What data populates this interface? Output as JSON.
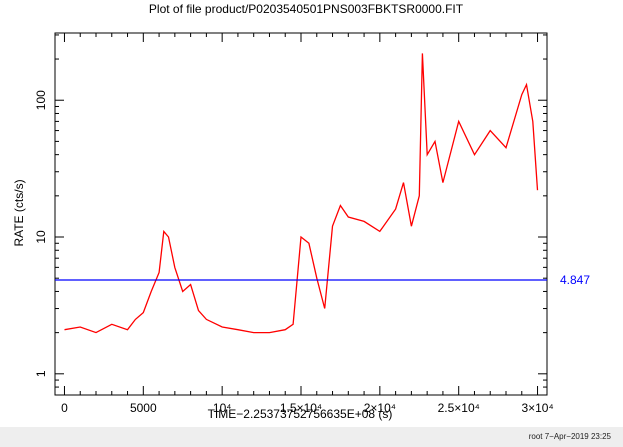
{
  "chart_data": {
    "type": "line",
    "title": "Plot of file product/P0203540501PNS003FBKTSR0000.FIT",
    "xlabel": "TIME−2.25373752756635E+08 (s)",
    "ylabel": "RATE (cts/s)",
    "xlim": [
      -600,
      30600
    ],
    "ylim": [
      0.7,
      310
    ],
    "yscale": "log",
    "x_ticks": [
      {
        "value": 0,
        "label": "0"
      },
      {
        "value": 5000,
        "label": "5000"
      },
      {
        "value": 10000,
        "label": "10⁴"
      },
      {
        "value": 15000,
        "label": "1.5×10⁴"
      },
      {
        "value": 20000,
        "label": "2×10⁴"
      },
      {
        "value": 25000,
        "label": "2.5×10⁴"
      },
      {
        "value": 30000,
        "label": "3×10⁴"
      }
    ],
    "y_ticks": [
      {
        "value": 1,
        "label": "1"
      },
      {
        "value": 10,
        "label": "10"
      },
      {
        "value": 100,
        "label": "100"
      }
    ],
    "series": [
      {
        "color": "#ff0000",
        "x": [
          0,
          1000,
          2000,
          3000,
          4000,
          4500,
          5000,
          5500,
          6000,
          6300,
          6600,
          7000,
          7500,
          8000,
          8500,
          9000,
          10000,
          11000,
          12000,
          13000,
          14000,
          14500,
          15000,
          15500,
          16000,
          16500,
          17000,
          17500,
          18000,
          19000,
          20000,
          21000,
          21500,
          22000,
          22500,
          22700,
          23000,
          23500,
          24000,
          25000,
          26000,
          27000,
          28000,
          29000,
          29300,
          29700,
          30000
        ],
        "y": [
          2.1,
          2.2,
          2.0,
          2.3,
          2.1,
          2.5,
          2.8,
          4.0,
          5.5,
          11.0,
          10.0,
          6.0,
          4.0,
          4.5,
          2.9,
          2.5,
          2.2,
          2.1,
          2.0,
          2.0,
          2.1,
          2.3,
          10.0,
          9.0,
          5.0,
          3.0,
          12.0,
          17.0,
          14.0,
          13.0,
          11.0,
          16.0,
          25.0,
          12.0,
          20.0,
          220.0,
          40.0,
          50.0,
          25.0,
          70.0,
          40.0,
          60.0,
          45.0,
          110.0,
          130.0,
          70.0,
          22.0
        ]
      },
      {
        "name": "4.847",
        "color": "#0000ff",
        "x": [
          -600,
          30600
        ],
        "y": [
          4.847,
          4.847
        ]
      }
    ],
    "annotations": [
      {
        "text": "4.847",
        "y": 4.847,
        "color": "#0000ff"
      }
    ],
    "grid": false
  },
  "footer": "root  7−Apr−2019 23:25"
}
